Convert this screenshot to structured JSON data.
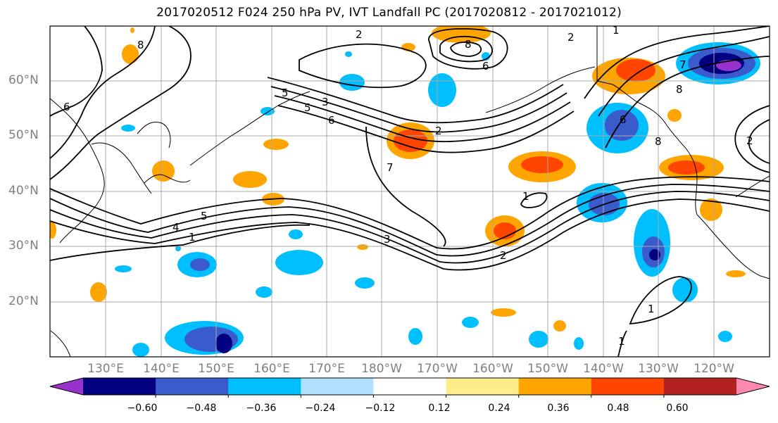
{
  "title": "2017020512 F024 250 hPa PV, IVT Landfall PC (2017020812 - 2017021012)",
  "lat_labels": [
    "60°N",
    "50°N",
    "40°N",
    "30°N",
    "20°N"
  ],
  "lon_labels": [
    "130°E",
    "140°E",
    "150°E",
    "160°E",
    "170°E",
    "180°W",
    "170°W",
    "160°W",
    "150°W",
    "140°W",
    "130°W",
    "120°W"
  ],
  "contour_labels": [
    "2",
    "8",
    "6",
    "5",
    "6",
    "2",
    "7",
    "5",
    "5",
    "6",
    "2",
    "4",
    "1",
    "3",
    "7",
    "2",
    "1",
    "6",
    "8",
    "2",
    "3",
    "1",
    "1",
    "8",
    "8",
    "1"
  ],
  "colorbar": {
    "colors": [
      "#9932CC",
      "#000080",
      "#3A5BCB",
      "#00BFFF",
      "#B0E2FF",
      "#FFFFFF",
      "#FFEC8B",
      "#FFA500",
      "#FF4500",
      "#B22222",
      "#FF88AE"
    ],
    "tick_labels": [
      "−0.60",
      "−0.48",
      "−0.36",
      "−0.24",
      "−0.12",
      "0.12",
      "0.24",
      "0.36",
      "0.48",
      "0.60"
    ]
  }
}
